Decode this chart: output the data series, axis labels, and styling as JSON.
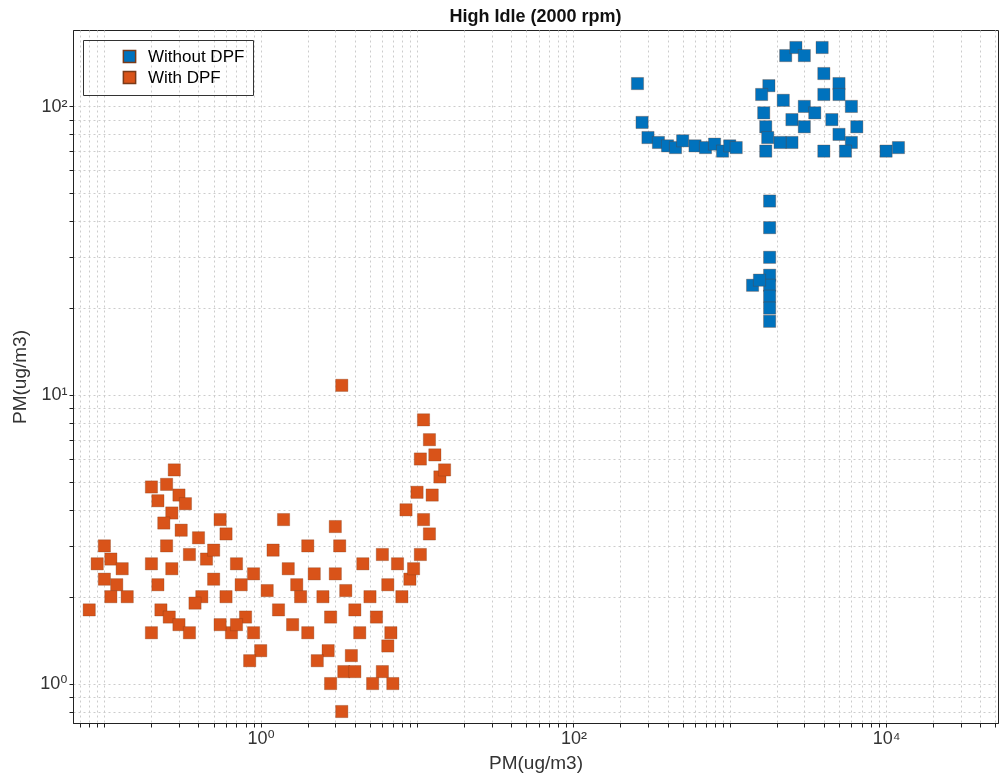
{
  "chart_data": {
    "type": "scatter",
    "title": "High Idle (2000 rpm)",
    "xlabel": "PM(ug/m3)",
    "ylabel": "PM(ug/m3)",
    "log": "xy",
    "grid": true,
    "legend": "top left",
    "marker": "square",
    "xlim": [
      0.063,
      52000
    ],
    "ylim": [
      0.73,
      184
    ],
    "xticks": [
      {
        "value": 0.07,
        "label": null
      },
      {
        "value": 0.08,
        "label": null
      },
      {
        "value": 0.09,
        "label": null
      },
      {
        "value": 0.1,
        "label": null
      },
      {
        "value": 0.2,
        "label": null
      },
      {
        "value": 0.3,
        "label": null
      },
      {
        "value": 0.4,
        "label": null
      },
      {
        "value": 0.5,
        "label": null
      },
      {
        "value": 0.6,
        "label": null
      },
      {
        "value": 0.7,
        "label": null
      },
      {
        "value": 0.8,
        "label": null
      },
      {
        "value": 0.9,
        "label": null
      },
      {
        "value": 1,
        "label": "10⁰"
      },
      {
        "value": 2,
        "label": null
      },
      {
        "value": 3,
        "label": null
      },
      {
        "value": 4,
        "label": null
      },
      {
        "value": 5,
        "label": null
      },
      {
        "value": 6,
        "label": null
      },
      {
        "value": 7,
        "label": null
      },
      {
        "value": 8,
        "label": null
      },
      {
        "value": 9,
        "label": null
      },
      {
        "value": 10,
        "label": null
      },
      {
        "value": 20,
        "label": null
      },
      {
        "value": 30,
        "label": null
      },
      {
        "value": 40,
        "label": null
      },
      {
        "value": 50,
        "label": null
      },
      {
        "value": 60,
        "label": null
      },
      {
        "value": 70,
        "label": null
      },
      {
        "value": 80,
        "label": null
      },
      {
        "value": 90,
        "label": null
      },
      {
        "value": 100,
        "label": "10²"
      },
      {
        "value": 200,
        "label": null
      },
      {
        "value": 300,
        "label": null
      },
      {
        "value": 400,
        "label": null
      },
      {
        "value": 500,
        "label": null
      },
      {
        "value": 600,
        "label": null
      },
      {
        "value": 700,
        "label": null
      },
      {
        "value": 800,
        "label": null
      },
      {
        "value": 900,
        "label": null
      },
      {
        "value": 1000,
        "label": null
      },
      {
        "value": 2000,
        "label": null
      },
      {
        "value": 3000,
        "label": null
      },
      {
        "value": 4000,
        "label": null
      },
      {
        "value": 5000,
        "label": null
      },
      {
        "value": 6000,
        "label": null
      },
      {
        "value": 7000,
        "label": null
      },
      {
        "value": 8000,
        "label": null
      },
      {
        "value": 9000,
        "label": null
      },
      {
        "value": 10000,
        "label": "10⁴"
      },
      {
        "value": 20000,
        "label": null
      },
      {
        "value": 30000,
        "label": null
      },
      {
        "value": 40000,
        "label": null
      },
      {
        "value": 50000,
        "label": null
      }
    ],
    "yticks": [
      {
        "value": 0.8,
        "label": null
      },
      {
        "value": 0.9,
        "label": null
      },
      {
        "value": 1,
        "label": "10⁰"
      },
      {
        "value": 2,
        "label": null
      },
      {
        "value": 3,
        "label": null
      },
      {
        "value": 4,
        "label": null
      },
      {
        "value": 5,
        "label": null
      },
      {
        "value": 6,
        "label": null
      },
      {
        "value": 7,
        "label": null
      },
      {
        "value": 8,
        "label": null
      },
      {
        "value": 9,
        "label": null
      },
      {
        "value": 10,
        "label": "10¹"
      },
      {
        "value": 20,
        "label": null
      },
      {
        "value": 30,
        "label": null
      },
      {
        "value": 40,
        "label": null
      },
      {
        "value": 50,
        "label": null
      },
      {
        "value": 60,
        "label": null
      },
      {
        "value": 70,
        "label": null
      },
      {
        "value": 80,
        "label": null
      },
      {
        "value": 90,
        "label": null
      },
      {
        "value": 100,
        "label": "10²"
      }
    ],
    "series": [
      {
        "name": "Without DPF",
        "color": "#0072bd",
        "x": [
          257,
          275,
          300,
          350,
          400,
          450,
          500,
          600,
          700,
          800,
          900,
          1000,
          1100,
          1780,
          1600,
          1650,
          1700,
          1750,
          1700,
          1800,
          1800,
          1800,
          1800,
          1800,
          1800,
          1800,
          1800,
          1400,
          1550,
          2280,
          2650,
          3900,
          3000,
          2500,
          3000,
          4000,
          5000,
          4500,
          5000,
          6000,
          5500,
          4000,
          3000,
          2500,
          6000,
          5000,
          4000,
          3500,
          6500,
          2200,
          2100,
          10000,
          12000
        ],
        "values": [
          120,
          88,
          78,
          75,
          73,
          72,
          76,
          73,
          72,
          74,
          70,
          73,
          72,
          118,
          110,
          95,
          85,
          78,
          70,
          47,
          38,
          30,
          26,
          24,
          22,
          20,
          18,
          24,
          25,
          150,
          160,
          160,
          150,
          90,
          100,
          130,
          120,
          90,
          80,
          75,
          70,
          70,
          85,
          75,
          100,
          110,
          110,
          95,
          85,
          105,
          75,
          70,
          72
        ]
      },
      {
        "name": "With DPF",
        "color": "#d95319",
        "x": [
          0.08,
          0.09,
          0.1,
          0.11,
          0.1,
          0.12,
          0.13,
          0.14,
          0.11,
          0.2,
          0.22,
          0.25,
          0.28,
          0.3,
          0.33,
          0.27,
          0.24,
          0.31,
          0.2,
          0.22,
          0.25,
          0.27,
          0.23,
          0.2,
          0.26,
          0.3,
          0.35,
          0.35,
          0.4,
          0.45,
          0.5,
          0.55,
          0.6,
          0.5,
          0.42,
          0.38,
          0.6,
          0.7,
          0.75,
          0.8,
          0.65,
          0.55,
          0.9,
          1.0,
          0.85,
          0.7,
          0.9,
          1.1,
          1.2,
          1.4,
          1.5,
          1.7,
          1.3,
          1.6,
          2.0,
          1.8,
          2.0,
          2.2,
          2.5,
          2.8,
          3.0,
          3.2,
          3.5,
          3.0,
          2.7,
          2.3,
          3.4,
          2.8,
          3.3,
          3.8,
          4.0,
          4.3,
          4.5,
          5.0,
          5.5,
          6.0,
          6.5,
          6.8,
          6.0,
          7.0,
          6.5,
          7.5,
          8.0,
          9.0,
          8.5,
          3.3,
          4.0,
          5.2,
          10,
          11,
          12,
          13,
          14,
          15,
          10.5,
          12.5,
          11,
          12,
          10.5,
          9.5
        ],
        "values": [
          1.8,
          2.6,
          3.0,
          2.7,
          2.3,
          2.2,
          2.5,
          2.0,
          2.0,
          4.8,
          4.3,
          4.9,
          5.5,
          4.5,
          4.2,
          3.9,
          3.6,
          3.4,
          2.6,
          2.2,
          3.0,
          2.5,
          1.8,
          1.5,
          1.7,
          1.6,
          1.5,
          2.8,
          3.2,
          2.7,
          2.9,
          3.7,
          3.3,
          2.3,
          2.0,
          1.9,
          2.0,
          2.6,
          2.2,
          1.7,
          1.5,
          1.6,
          1.5,
          1.3,
          1.2,
          1.6,
          2.4,
          2.1,
          2.9,
          3.7,
          2.5,
          2.2,
          1.8,
          1.6,
          1.5,
          2.0,
          3.0,
          2.4,
          2.0,
          1.7,
          3.5,
          3.0,
          2.1,
          2.4,
          1.3,
          1.2,
          1.1,
          1.0,
          0.8,
          1.25,
          1.8,
          1.5,
          2.6,
          2.0,
          1.7,
          2.8,
          2.2,
          1.5,
          1.1,
          1.0,
          1.35,
          2.6,
          2.0,
          2.3,
          4.0,
          10.8,
          1.1,
          1.0,
          4.6,
          8.2,
          7.0,
          6.2,
          5.2,
          5.5,
          6.0,
          4.5,
          3.7,
          3.3,
          2.8,
          2.5
        ]
      }
    ]
  }
}
